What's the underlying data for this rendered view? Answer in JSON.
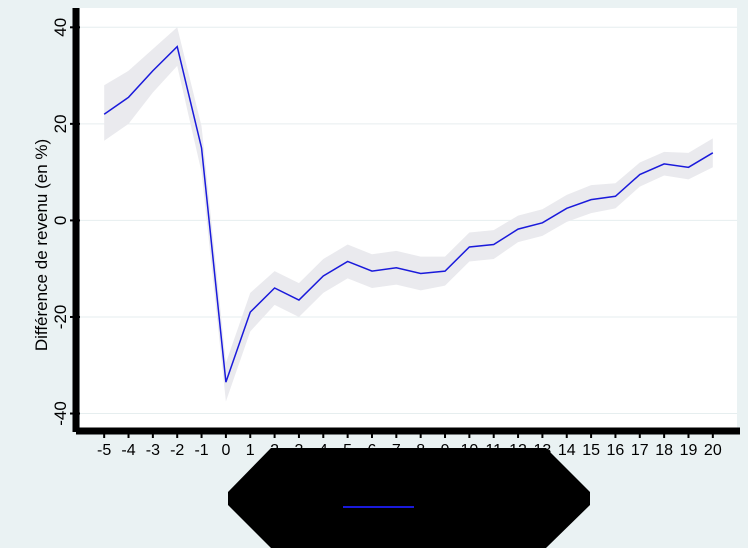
{
  "chart_data": {
    "type": "line",
    "title": "",
    "xlabel": "",
    "ylabel": "Différence de revenu (en %)",
    "x": [
      -5,
      -4,
      -3,
      -2,
      -1,
      0,
      1,
      2,
      3,
      4,
      5,
      6,
      7,
      8,
      9,
      10,
      11,
      12,
      13,
      14,
      15,
      16,
      17,
      18,
      19,
      20
    ],
    "x_tick_labels": [
      "-5",
      "-4",
      "-3",
      "-2",
      "-1",
      "0",
      "1",
      "2",
      "3",
      "4",
      "5",
      "6",
      "7",
      "8",
      "9",
      "10",
      "11",
      "12",
      "13",
      "14",
      "15",
      "16",
      "17",
      "18",
      "19",
      "20"
    ],
    "y_ticks": [
      40,
      20,
      0,
      -20,
      -40
    ],
    "y_tick_labels": [
      "40",
      "20",
      "0",
      "-20",
      "-40"
    ],
    "ylim": [
      -43,
      44
    ],
    "xlim": [
      -5.5,
      20.5
    ],
    "grid": true,
    "legend_placement": "bottom-center",
    "series": [
      {
        "values": [
          22,
          25.5,
          31,
          36,
          15,
          -33.5,
          -19,
          -14,
          -16.5,
          -11.5,
          -8.5,
          -10.5,
          -9.8,
          -11,
          -10.5,
          -5.5,
          -5,
          -1.8,
          -0.5,
          2.5,
          4.3,
          5,
          9.5,
          11.7,
          11,
          14
        ],
        "lower": [
          16.5,
          20,
          26.5,
          32,
          10,
          -37.5,
          -23,
          -17.5,
          -20,
          -15,
          -12,
          -14,
          -13.3,
          -14.5,
          -13.5,
          -8.5,
          -8,
          -4.5,
          -3.2,
          -0.3,
          1.5,
          2.5,
          7,
          9.3,
          8.5,
          11
        ],
        "upper": [
          28,
          31,
          35.5,
          40,
          19.5,
          -29.5,
          -15,
          -10.5,
          -13,
          -8,
          -5,
          -7,
          -6.3,
          -7.5,
          -7.5,
          -2.5,
          -2,
          1,
          2.3,
          5.3,
          7.3,
          7.7,
          12,
          14.2,
          14,
          17
        ],
        "line_color": "#1a1adb",
        "band_color": "#eaeaee"
      }
    ],
    "plot_background": "#ffffff",
    "outer_background": "#eaf2f3"
  }
}
